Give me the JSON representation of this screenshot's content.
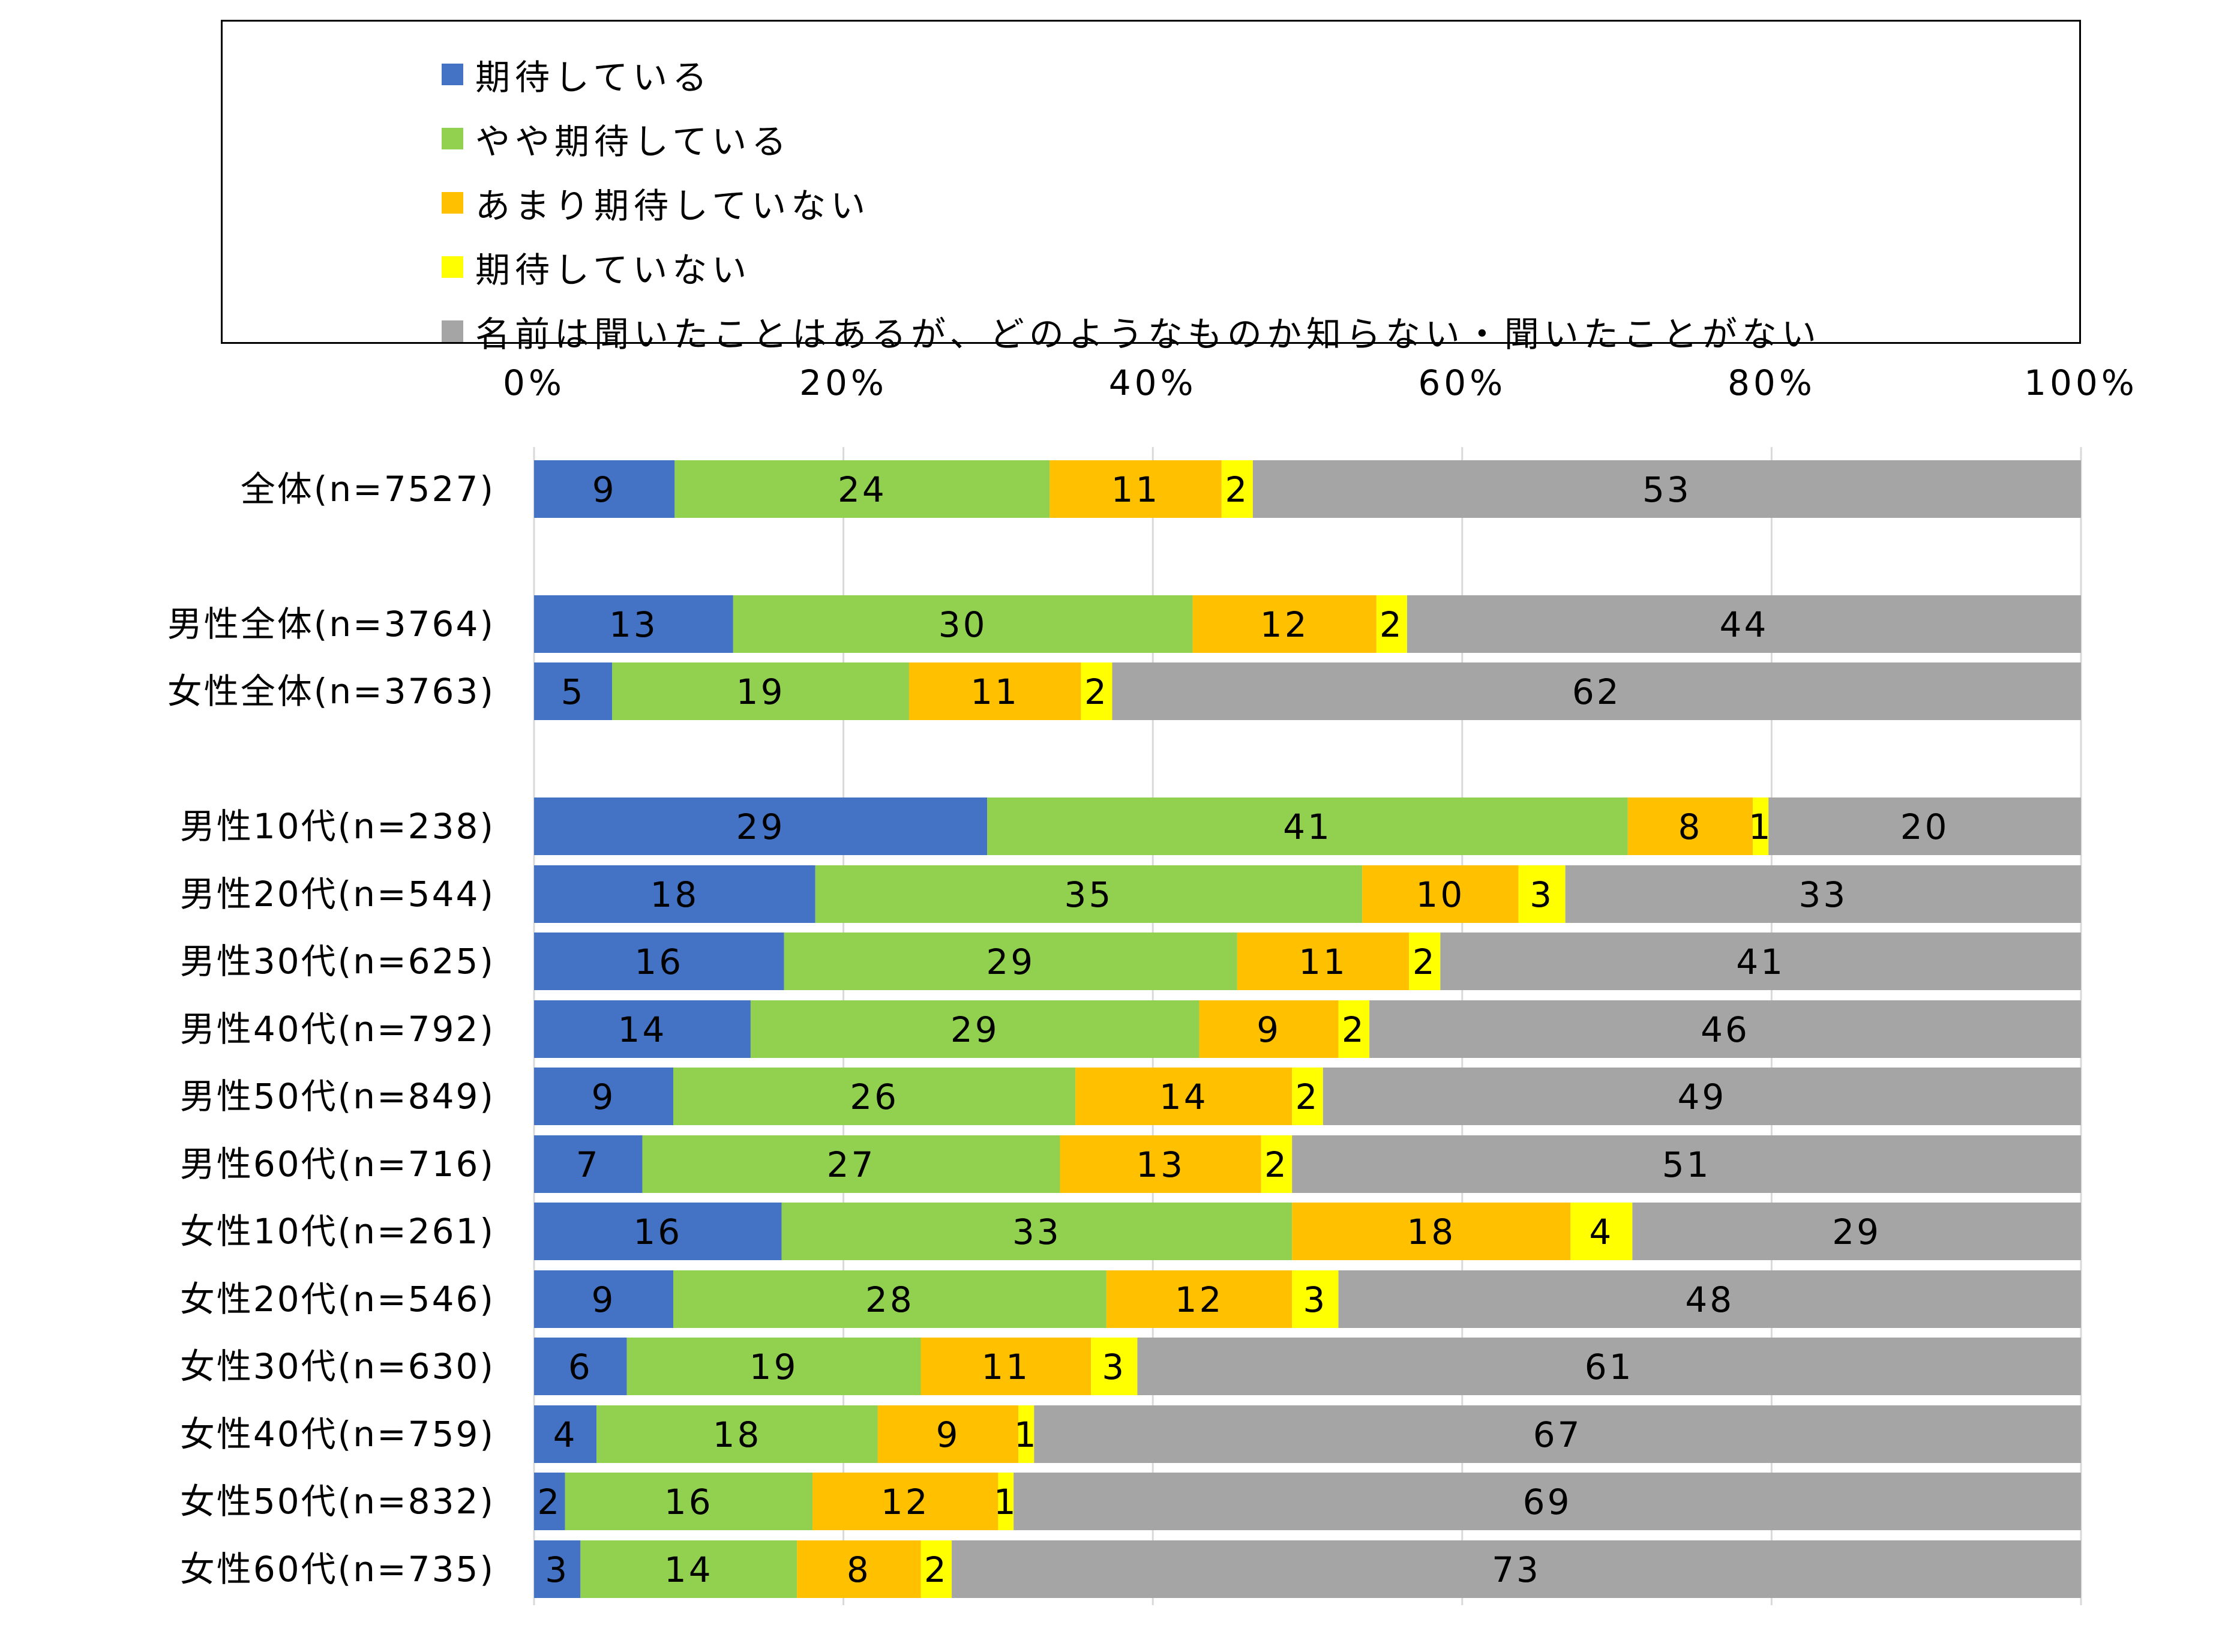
{
  "chart_data": {
    "type": "bar",
    "orientation": "horizontal",
    "stacked": "percent",
    "legend_position": "top",
    "grid": true,
    "xlim": [
      0,
      100
    ],
    "x_ticks": [
      "0%",
      "20%",
      "40%",
      "60%",
      "80%",
      "100%"
    ],
    "categories": [
      "全体(n=7527)",
      "男性全体(n=3764)",
      "女性全体(n=3763)",
      "男性10代(n=238)",
      "男性20代(n=544)",
      "男性30代(n=625)",
      "男性40代(n=792)",
      "男性50代(n=849)",
      "男性60代(n=716)",
      "女性10代(n=261)",
      "女性20代(n=546)",
      "女性30代(n=630)",
      "女性40代(n=759)",
      "女性50代(n=832)",
      "女性60代(n=735)"
    ],
    "series": [
      {
        "name": "期待している",
        "color": "#4472C4",
        "values": [
          9,
          13,
          5,
          29,
          18,
          16,
          14,
          9,
          7,
          16,
          9,
          6,
          4,
          2,
          3
        ]
      },
      {
        "name": "やや期待している",
        "color": "#92D050",
        "values": [
          24,
          30,
          19,
          41,
          35,
          29,
          29,
          26,
          27,
          33,
          28,
          19,
          18,
          16,
          14
        ]
      },
      {
        "name": "あまり期待していない",
        "color": "#FFC000",
        "values": [
          11,
          12,
          11,
          8,
          10,
          11,
          9,
          14,
          13,
          18,
          12,
          11,
          9,
          12,
          8
        ]
      },
      {
        "name": "期待していない",
        "color": "#FFFF00",
        "values": [
          2,
          2,
          2,
          1,
          3,
          2,
          2,
          2,
          2,
          4,
          3,
          3,
          1,
          1,
          2
        ]
      },
      {
        "name": "名前は聞いたことはあるが、どのようなものか知らない・聞いたことがない",
        "color": "#A5A5A5",
        "values": [
          53,
          44,
          62,
          20,
          33,
          41,
          46,
          49,
          51,
          29,
          48,
          61,
          67,
          69,
          73
        ]
      }
    ]
  }
}
